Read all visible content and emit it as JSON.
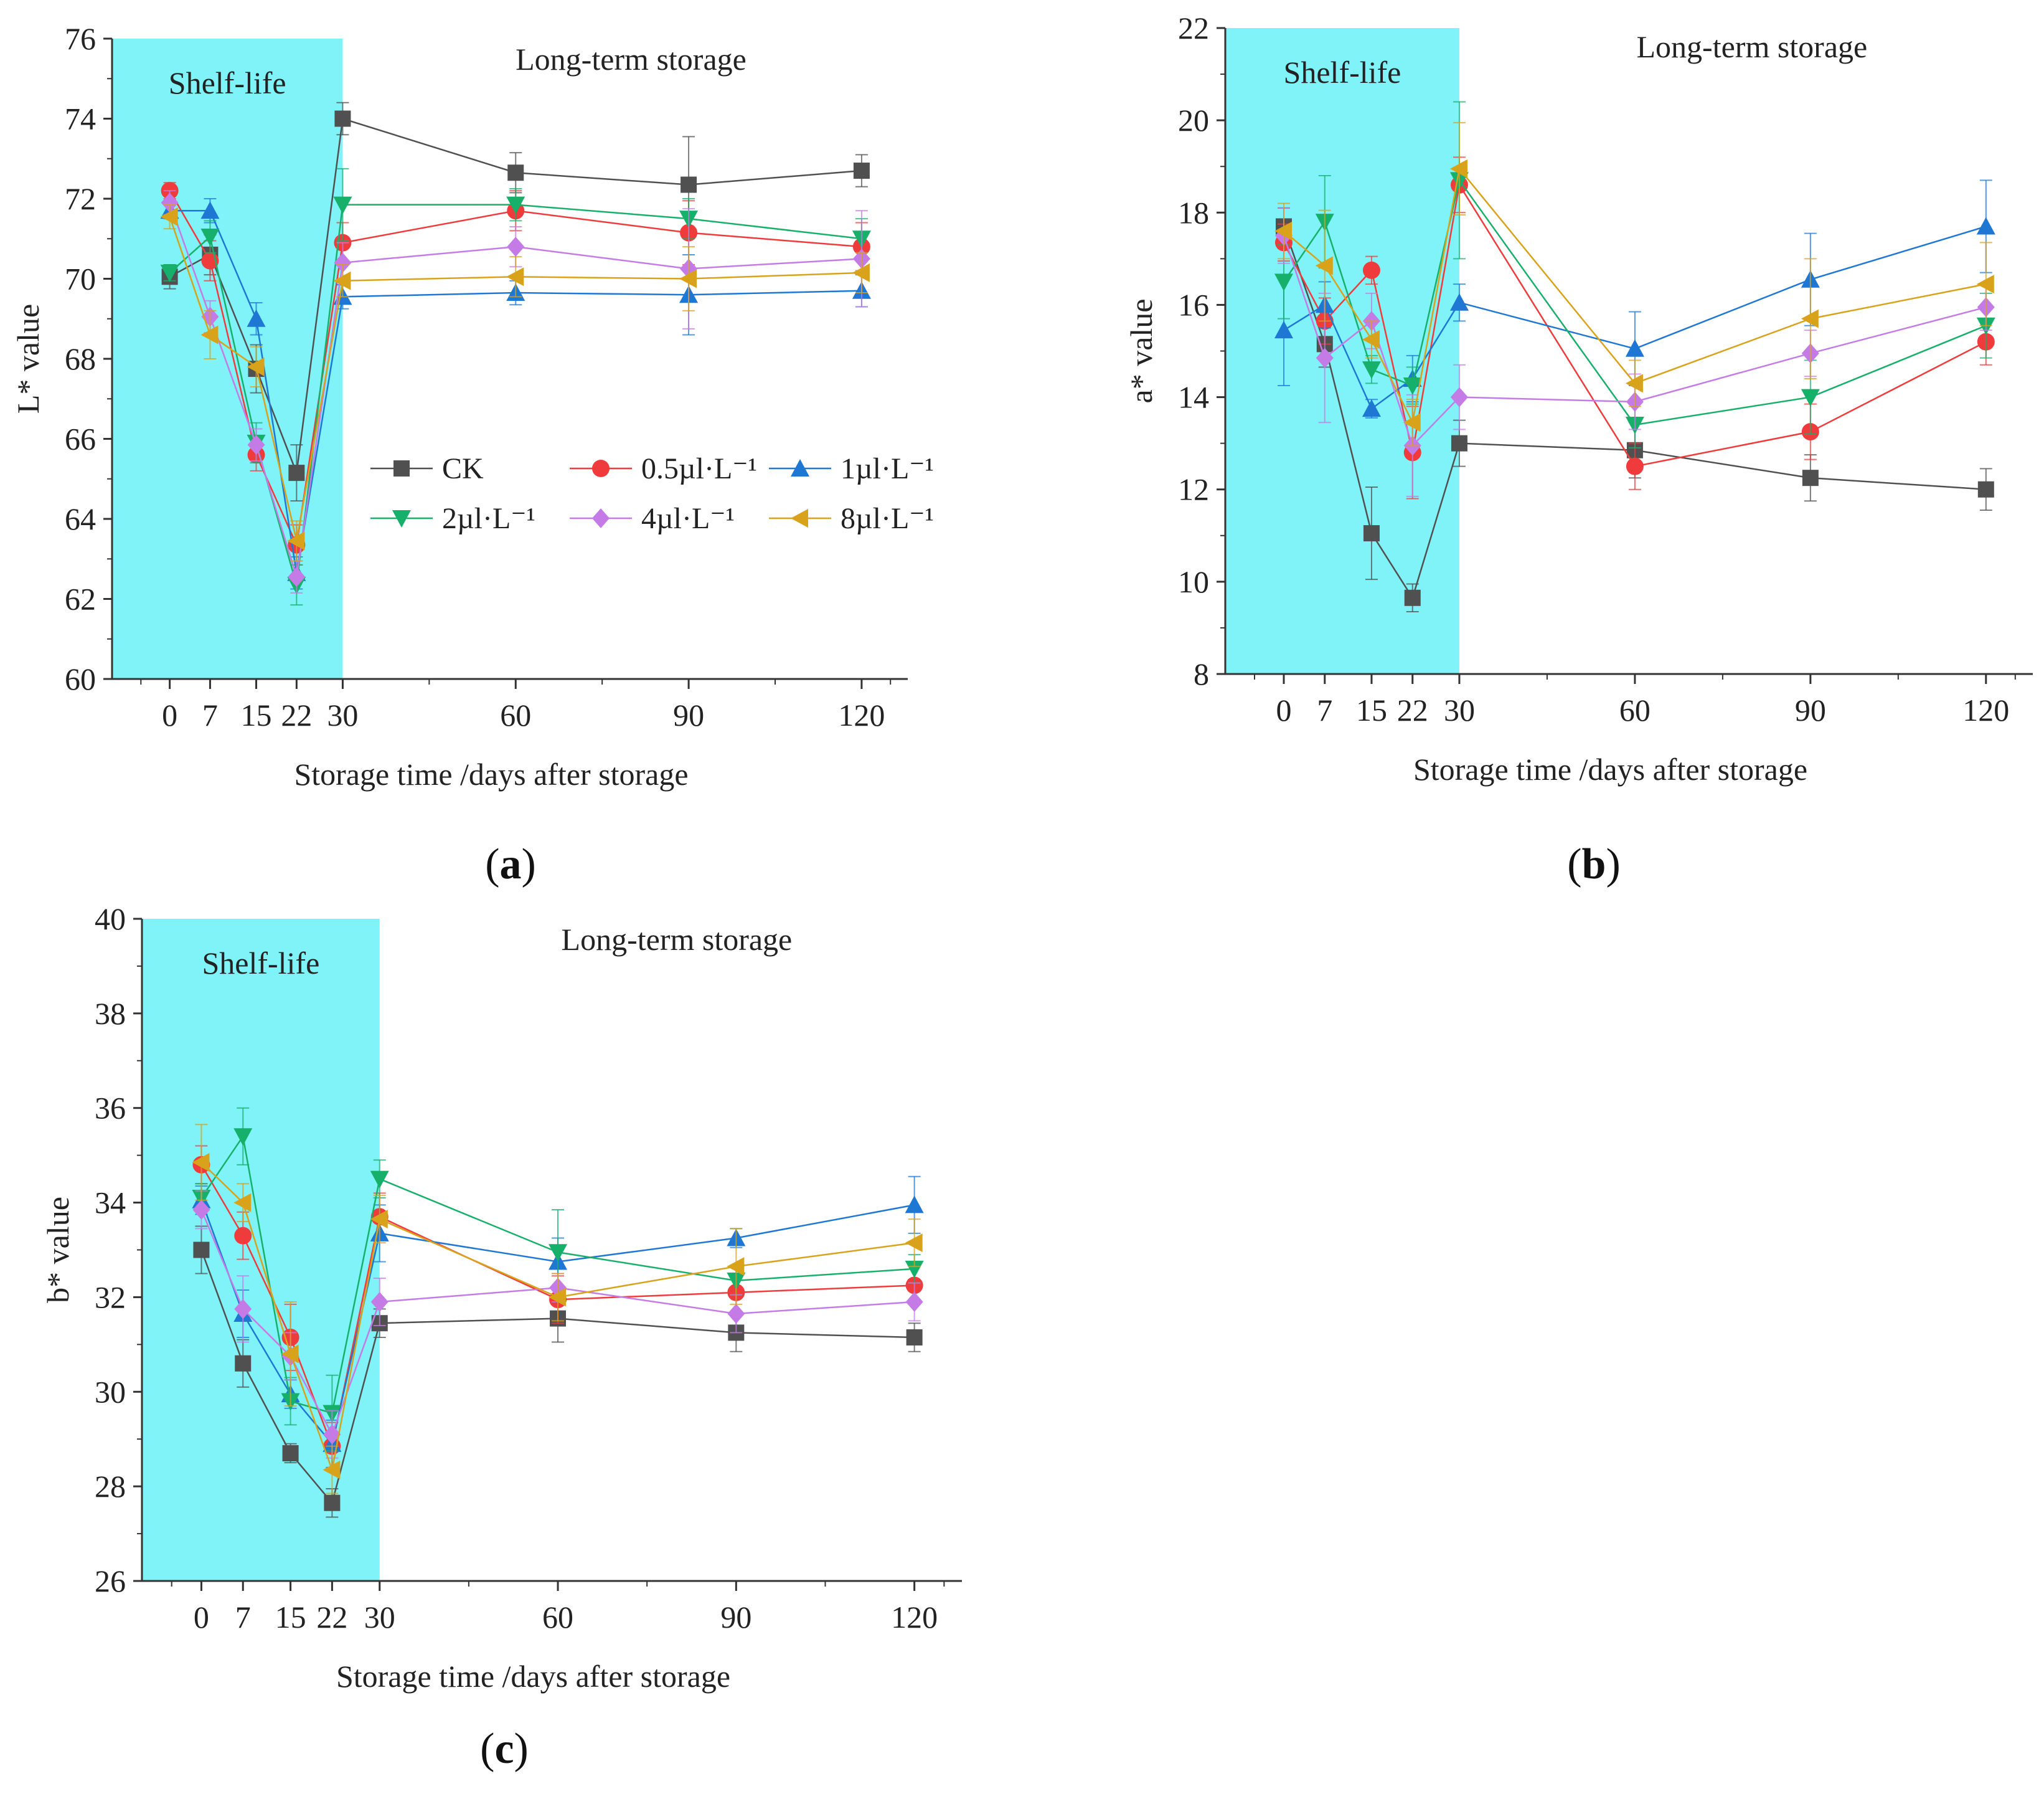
{
  "colors": {
    "shelf_region": "#7ff3f8",
    "axis": "#333333",
    "series": {
      "CK": "#505050",
      "0.5ul": "#ef3b3b",
      "1ul": "#1f77d4",
      "2ul": "#17b06b",
      "4ul": "#c57be6",
      "8ul": "#d9a21b"
    }
  },
  "legend": {
    "entries": [
      {
        "key": "CK",
        "label": "CK",
        "marker": "square"
      },
      {
        "key": "0.5ul",
        "label": "0.5µl·L⁻¹",
        "marker": "circle"
      },
      {
        "key": "1ul",
        "label": "1µl·L⁻¹",
        "marker": "triangle-up"
      },
      {
        "key": "2ul",
        "label": "2µl·L⁻¹",
        "marker": "triangle-down"
      },
      {
        "key": "4ul",
        "label": "4µl·L⁻¹",
        "marker": "diamond"
      },
      {
        "key": "8ul",
        "label": "8µl·L⁻¹",
        "marker": "triangle-left"
      }
    ]
  },
  "chart_data": [
    {
      "id": "a",
      "type": "line",
      "panel_label_open": "(",
      "panel_label_letter": "a",
      "panel_label_close": ")",
      "ylabel": "L* value",
      "xlabel": "Storage time /days after storage",
      "shelf_label": "Shelf-life",
      "long_label": "Long-term storage",
      "shelf_range": [
        0,
        30
      ],
      "ylim": [
        60,
        76
      ],
      "yticks": [
        60,
        62,
        64,
        66,
        68,
        70,
        72,
        74,
        76
      ],
      "xticks": [
        0,
        7,
        15,
        22,
        30,
        60,
        90,
        120
      ],
      "x": [
        0,
        7,
        15,
        22,
        30,
        60,
        90,
        120
      ],
      "series": [
        {
          "key": "CK",
          "values": [
            70.05,
            70.6,
            67.75,
            65.15,
            74.0,
            72.65,
            72.35,
            72.7
          ],
          "errors": [
            0.3,
            0.5,
            0.6,
            0.7,
            0.4,
            0.5,
            1.2,
            0.4
          ]
        },
        {
          "key": "0.5ul",
          "values": [
            72.2,
            70.45,
            65.6,
            63.35,
            70.9,
            71.7,
            71.15,
            70.8
          ],
          "errors": [
            0.2,
            0.5,
            0.4,
            0.5,
            0.5,
            0.5,
            0.8,
            0.6
          ]
        },
        {
          "key": "1ul",
          "values": [
            71.7,
            71.7,
            69.0,
            62.65,
            69.55,
            69.65,
            69.6,
            69.7
          ],
          "errors": [
            0.2,
            0.3,
            0.4,
            0.4,
            0.3,
            0.3,
            1.0,
            0.4
          ]
        },
        {
          "key": "2ul",
          "values": [
            70.15,
            71.05,
            65.9,
            62.35,
            71.85,
            71.85,
            71.5,
            71.0
          ],
          "errors": [
            0.2,
            0.4,
            0.5,
            0.5,
            0.9,
            0.4,
            0.5,
            0.5
          ]
        },
        {
          "key": "4ul",
          "values": [
            71.9,
            69.05,
            65.85,
            62.55,
            70.4,
            70.8,
            70.25,
            70.5
          ],
          "errors": [
            0.3,
            0.4,
            0.4,
            0.4,
            0.5,
            0.5,
            1.5,
            1.2
          ]
        },
        {
          "key": "8ul",
          "values": [
            71.55,
            68.6,
            67.8,
            63.45,
            69.95,
            70.05,
            70.0,
            70.15
          ],
          "errors": [
            0.3,
            0.6,
            0.5,
            0.5,
            0.4,
            0.5,
            0.8,
            0.5
          ]
        }
      ]
    },
    {
      "id": "b",
      "type": "line",
      "panel_label_open": "(",
      "panel_label_letter": "b",
      "panel_label_close": ")",
      "ylabel": "a* value",
      "xlabel": "Storage time /days after storage",
      "shelf_label": "Shelf-life",
      "long_label": "Long-term storage",
      "shelf_range": [
        0,
        30
      ],
      "ylim": [
        8,
        22
      ],
      "yticks": [
        8,
        10,
        12,
        14,
        16,
        18,
        20,
        22
      ],
      "xticks": [
        0,
        7,
        15,
        22,
        30,
        60,
        90,
        120
      ],
      "x": [
        0,
        7,
        15,
        22,
        30,
        60,
        90,
        120
      ],
      "series": [
        {
          "key": "CK",
          "values": [
            17.7,
            15.15,
            11.05,
            9.65,
            13.0,
            12.85,
            12.25,
            12.0
          ],
          "errors": [
            0.4,
            0.5,
            1.0,
            0.3,
            0.5,
            0.6,
            0.5,
            0.45
          ]
        },
        {
          "key": "0.5ul",
          "values": [
            17.35,
            15.65,
            16.75,
            12.8,
            18.6,
            12.5,
            13.25,
            15.2
          ],
          "errors": [
            0.4,
            0.5,
            0.3,
            1.0,
            0.6,
            0.5,
            0.6,
            0.5
          ]
        },
        {
          "key": "1ul",
          "values": [
            15.45,
            16.0,
            13.75,
            14.4,
            16.05,
            15.05,
            16.55,
            17.7
          ],
          "errors": [
            1.2,
            0.5,
            0.2,
            0.5,
            0.4,
            0.8,
            1.0,
            1.0
          ]
        },
        {
          "key": "2ul",
          "values": [
            16.5,
            17.8,
            14.6,
            14.25,
            18.7,
            13.4,
            14.0,
            15.55
          ],
          "errors": [
            0.8,
            1.0,
            0.3,
            0.4,
            1.7,
            0.5,
            0.8,
            0.7
          ]
        },
        {
          "key": "4ul",
          "values": [
            17.5,
            14.85,
            15.65,
            12.95,
            14.0,
            13.9,
            14.95,
            15.95
          ],
          "errors": [
            0.6,
            1.4,
            0.6,
            1.1,
            0.7,
            0.6,
            0.5,
            0.5
          ]
        },
        {
          "key": "8ul",
          "values": [
            17.6,
            16.85,
            15.25,
            13.45,
            18.95,
            14.3,
            15.7,
            16.45
          ],
          "errors": [
            0.6,
            1.2,
            0.4,
            0.5,
            1.0,
            0.5,
            1.3,
            0.9
          ]
        }
      ]
    },
    {
      "id": "c",
      "type": "line",
      "panel_label_open": "(",
      "panel_label_letter": "c",
      "panel_label_close": ")",
      "ylabel": "b* value",
      "xlabel": "Storage time /days after storage",
      "shelf_label": "Shelf-life",
      "long_label": "Long-term storage",
      "shelf_range": [
        0,
        30
      ],
      "ylim": [
        26,
        40
      ],
      "yticks": [
        26,
        28,
        30,
        32,
        34,
        36,
        38,
        40
      ],
      "xticks": [
        0,
        7,
        15,
        22,
        30,
        60,
        90,
        120
      ],
      "x": [
        0,
        7,
        15,
        22,
        30,
        60,
        90,
        120
      ],
      "series": [
        {
          "key": "CK",
          "values": [
            33.0,
            30.6,
            28.7,
            27.65,
            31.45,
            31.55,
            31.25,
            31.15
          ],
          "errors": [
            0.5,
            0.5,
            0.2,
            0.3,
            0.3,
            0.5,
            0.4,
            0.3
          ]
        },
        {
          "key": "0.5ul",
          "values": [
            34.8,
            33.3,
            31.15,
            28.85,
            33.7,
            31.95,
            32.1,
            32.25
          ],
          "errors": [
            0.4,
            0.5,
            0.7,
            0.5,
            0.5,
            0.5,
            0.4,
            0.4
          ]
        },
        {
          "key": "1ul",
          "values": [
            34.05,
            31.65,
            29.95,
            28.9,
            33.35,
            32.75,
            33.25,
            33.95
          ],
          "errors": [
            0.3,
            0.5,
            0.3,
            0.5,
            0.6,
            0.5,
            0.2,
            0.6
          ]
        },
        {
          "key": "2ul",
          "values": [
            34.1,
            35.4,
            29.8,
            29.55,
            34.5,
            32.95,
            32.35,
            32.6
          ],
          "errors": [
            0.3,
            0.6,
            0.5,
            0.8,
            0.4,
            0.9,
            0.3,
            0.3
          ]
        },
        {
          "key": "4ul",
          "values": [
            33.85,
            31.75,
            30.75,
            29.1,
            31.9,
            32.2,
            31.65,
            31.9
          ],
          "errors": [
            0.4,
            0.7,
            0.5,
            0.5,
            0.5,
            0.3,
            0.4,
            0.4
          ]
        },
        {
          "key": "8ul",
          "values": [
            34.85,
            34.0,
            30.8,
            28.35,
            33.65,
            32.0,
            32.65,
            33.15
          ],
          "errors": [
            0.8,
            0.4,
            1.1,
            0.5,
            0.5,
            0.5,
            0.8,
            0.5
          ]
        }
      ]
    }
  ]
}
